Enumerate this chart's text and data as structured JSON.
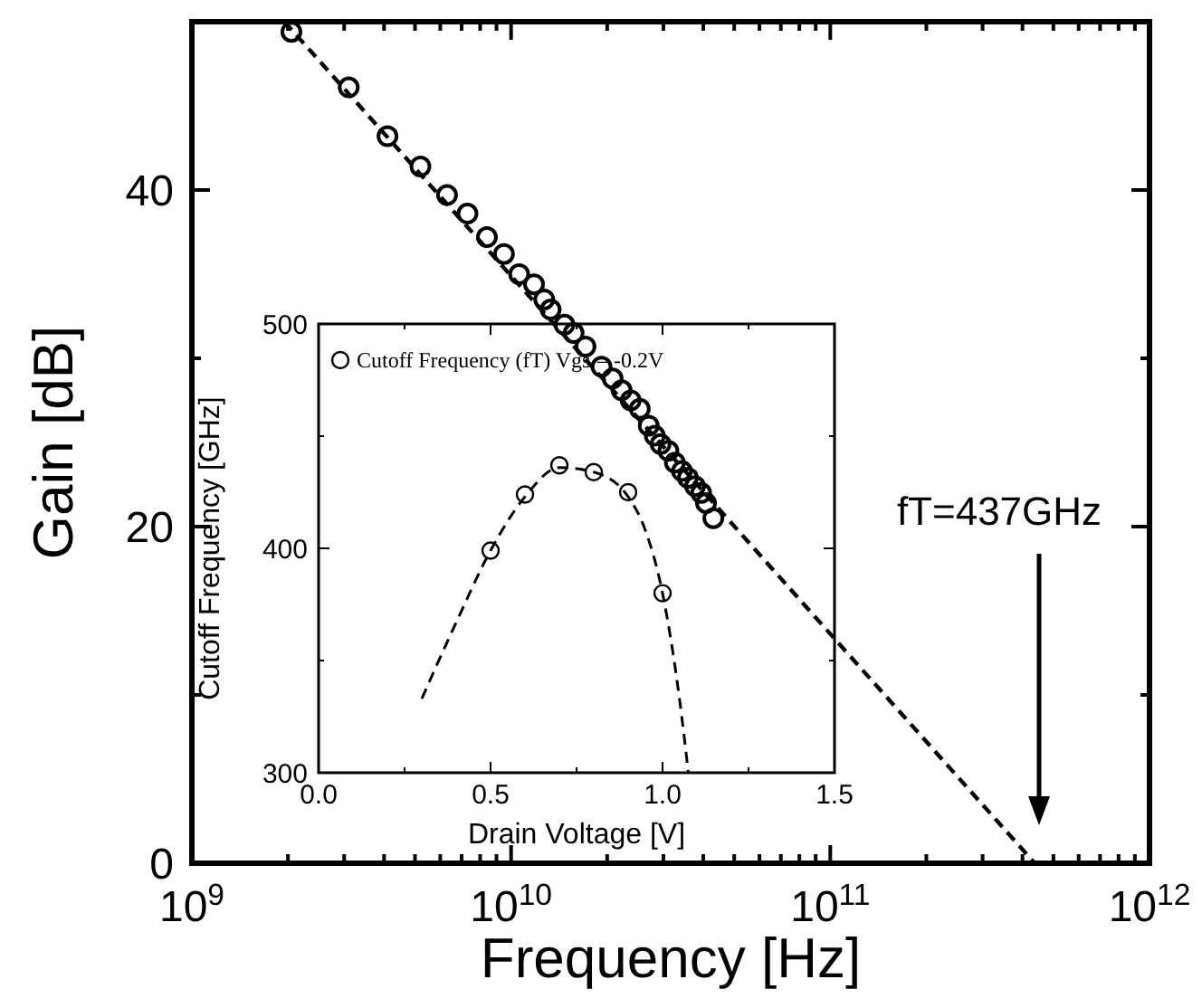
{
  "chart_data": [
    {
      "type": "scatter",
      "xlabel": "Frequency [Hz]",
      "ylabel": "Gain [dB]",
      "log": "x",
      "marker": "circle",
      "legend": false,
      "grid": false,
      "xlim": [
        1000000000.0,
        1000000000000.0
      ],
      "ylim": [
        0,
        50
      ],
      "xticks": [
        {
          "value": 1000000000.0,
          "label": "10$^{9}$"
        },
        {
          "value": 2000000000.0,
          "label": null
        },
        {
          "value": 3000000000.0,
          "label": null
        },
        {
          "value": 4000000000.0,
          "label": null
        },
        {
          "value": 5000000000.0,
          "label": null
        },
        {
          "value": 6000000000.0,
          "label": null
        },
        {
          "value": 7000000000.0,
          "label": null
        },
        {
          "value": 8000000000.0,
          "label": null
        },
        {
          "value": 9000000000.0,
          "label": null
        },
        {
          "value": 10000000000.0,
          "label": "10$^{10}$"
        },
        {
          "value": 20000000000.0,
          "label": null
        },
        {
          "value": 30000000000.0,
          "label": null
        },
        {
          "value": 40000000000.0,
          "label": null
        },
        {
          "value": 50000000000.0,
          "label": null
        },
        {
          "value": 60000000000.0,
          "label": null
        },
        {
          "value": 70000000000.0,
          "label": null
        },
        {
          "value": 80000000000.0,
          "label": null
        },
        {
          "value": 90000000000.0,
          "label": null
        },
        {
          "value": 100000000000.0,
          "label": "10$^{11}$"
        },
        {
          "value": 200000000000.0,
          "label": null
        },
        {
          "value": 300000000000.0,
          "label": null
        },
        {
          "value": 400000000000.0,
          "label": null
        },
        {
          "value": 500000000000.0,
          "label": null
        },
        {
          "value": 600000000000.0,
          "label": null
        },
        {
          "value": 700000000000.0,
          "label": null
        },
        {
          "value": 800000000000.0,
          "label": null
        },
        {
          "value": 900000000000.0,
          "label": null
        },
        {
          "value": 1000000000000.0,
          "label": "10$^{12}$"
        }
      ],
      "yticks": [
        0,
        {
          "value": 10,
          "label": null
        },
        20,
        {
          "value": 30,
          "label": null
        },
        40
      ],
      "series": [
        {
          "type": "line",
          "color": "#000000",
          "line_style": "dashed",
          "marker": "none",
          "x": [
            1950000000.0,
            437000000000.0
          ],
          "values": [
            50,
            0
          ]
        },
        {
          "color": "#000000",
          "x": [
            2050000000.0,
            3100000000.0,
            4100000000.0,
            5200000000.0,
            6300000000.0,
            7300000000.0,
            8400000000.0,
            9500000000.0,
            10600000000.0,
            11800000000.0,
            12700000000.0,
            13300000000.0,
            14700000000.0,
            15700000000.0,
            17100000000.0,
            19200000000.0,
            20800000000.0,
            22200000000.0,
            23700000000.0,
            25300000000.0,
            27000000000.0,
            28200000000.0,
            29400000000.0,
            31100000000.0,
            32600000000.0,
            34300000000.0,
            35800000000.0,
            37700000000.0,
            39400000000.0,
            40800000000.0,
            43000000000.0
          ],
          "values": [
            49.4,
            46.1,
            43.2,
            41.4,
            39.7,
            38.6,
            37.2,
            36.2,
            35.0,
            34.4,
            33.5,
            32.9,
            32.0,
            31.5,
            30.7,
            29.5,
            28.8,
            28.1,
            27.5,
            27.0,
            26.0,
            25.4,
            24.9,
            24.5,
            23.8,
            23.3,
            22.9,
            22.4,
            22.0,
            21.4,
            20.5
          ]
        }
      ],
      "annotations": [
        "fT=437GHz"
      ]
    },
    {
      "type": "scatter",
      "xlabel": "Drain Voltage [V]",
      "ylabel": "Cutoff Frequency [GHz]",
      "marker": "circle",
      "legend": "top left",
      "grid": false,
      "xlim": [
        0,
        1.5
      ],
      "ylim": [
        300,
        500
      ],
      "xticks": [
        {
          "value": 0,
          "label": "0.0"
        },
        {
          "value": 0.25,
          "label": null
        },
        {
          "value": 0.5,
          "label": "0.5"
        },
        {
          "value": 0.75,
          "label": null
        },
        {
          "value": 1,
          "label": "1.0"
        },
        {
          "value": 1.25,
          "label": null
        },
        {
          "value": 1.5,
          "label": "1.5"
        }
      ],
      "yticks": [
        300,
        {
          "value": 350,
          "label": null
        },
        400,
        {
          "value": 450,
          "label": null
        },
        500
      ],
      "series": [
        {
          "type": "line",
          "color": "#000000",
          "line_style": "dashed",
          "marker": "none",
          "x": [
            0.3,
            0.4,
            0.5,
            0.6,
            0.7,
            0.8,
            0.9,
            0.95,
            1.0,
            1.05,
            1.075
          ],
          "values": [
            333,
            367,
            399,
            423,
            436,
            434,
            423,
            408,
            380,
            332,
            300
          ]
        },
        {
          "name": "Cutoff Frequency (fT) Vgs = -0.2V",
          "color": "#000000",
          "x": [
            0.5,
            0.6,
            0.7,
            0.8,
            0.9,
            1.0
          ],
          "values": [
            399,
            424,
            437,
            434,
            425,
            380
          ]
        }
      ]
    }
  ]
}
